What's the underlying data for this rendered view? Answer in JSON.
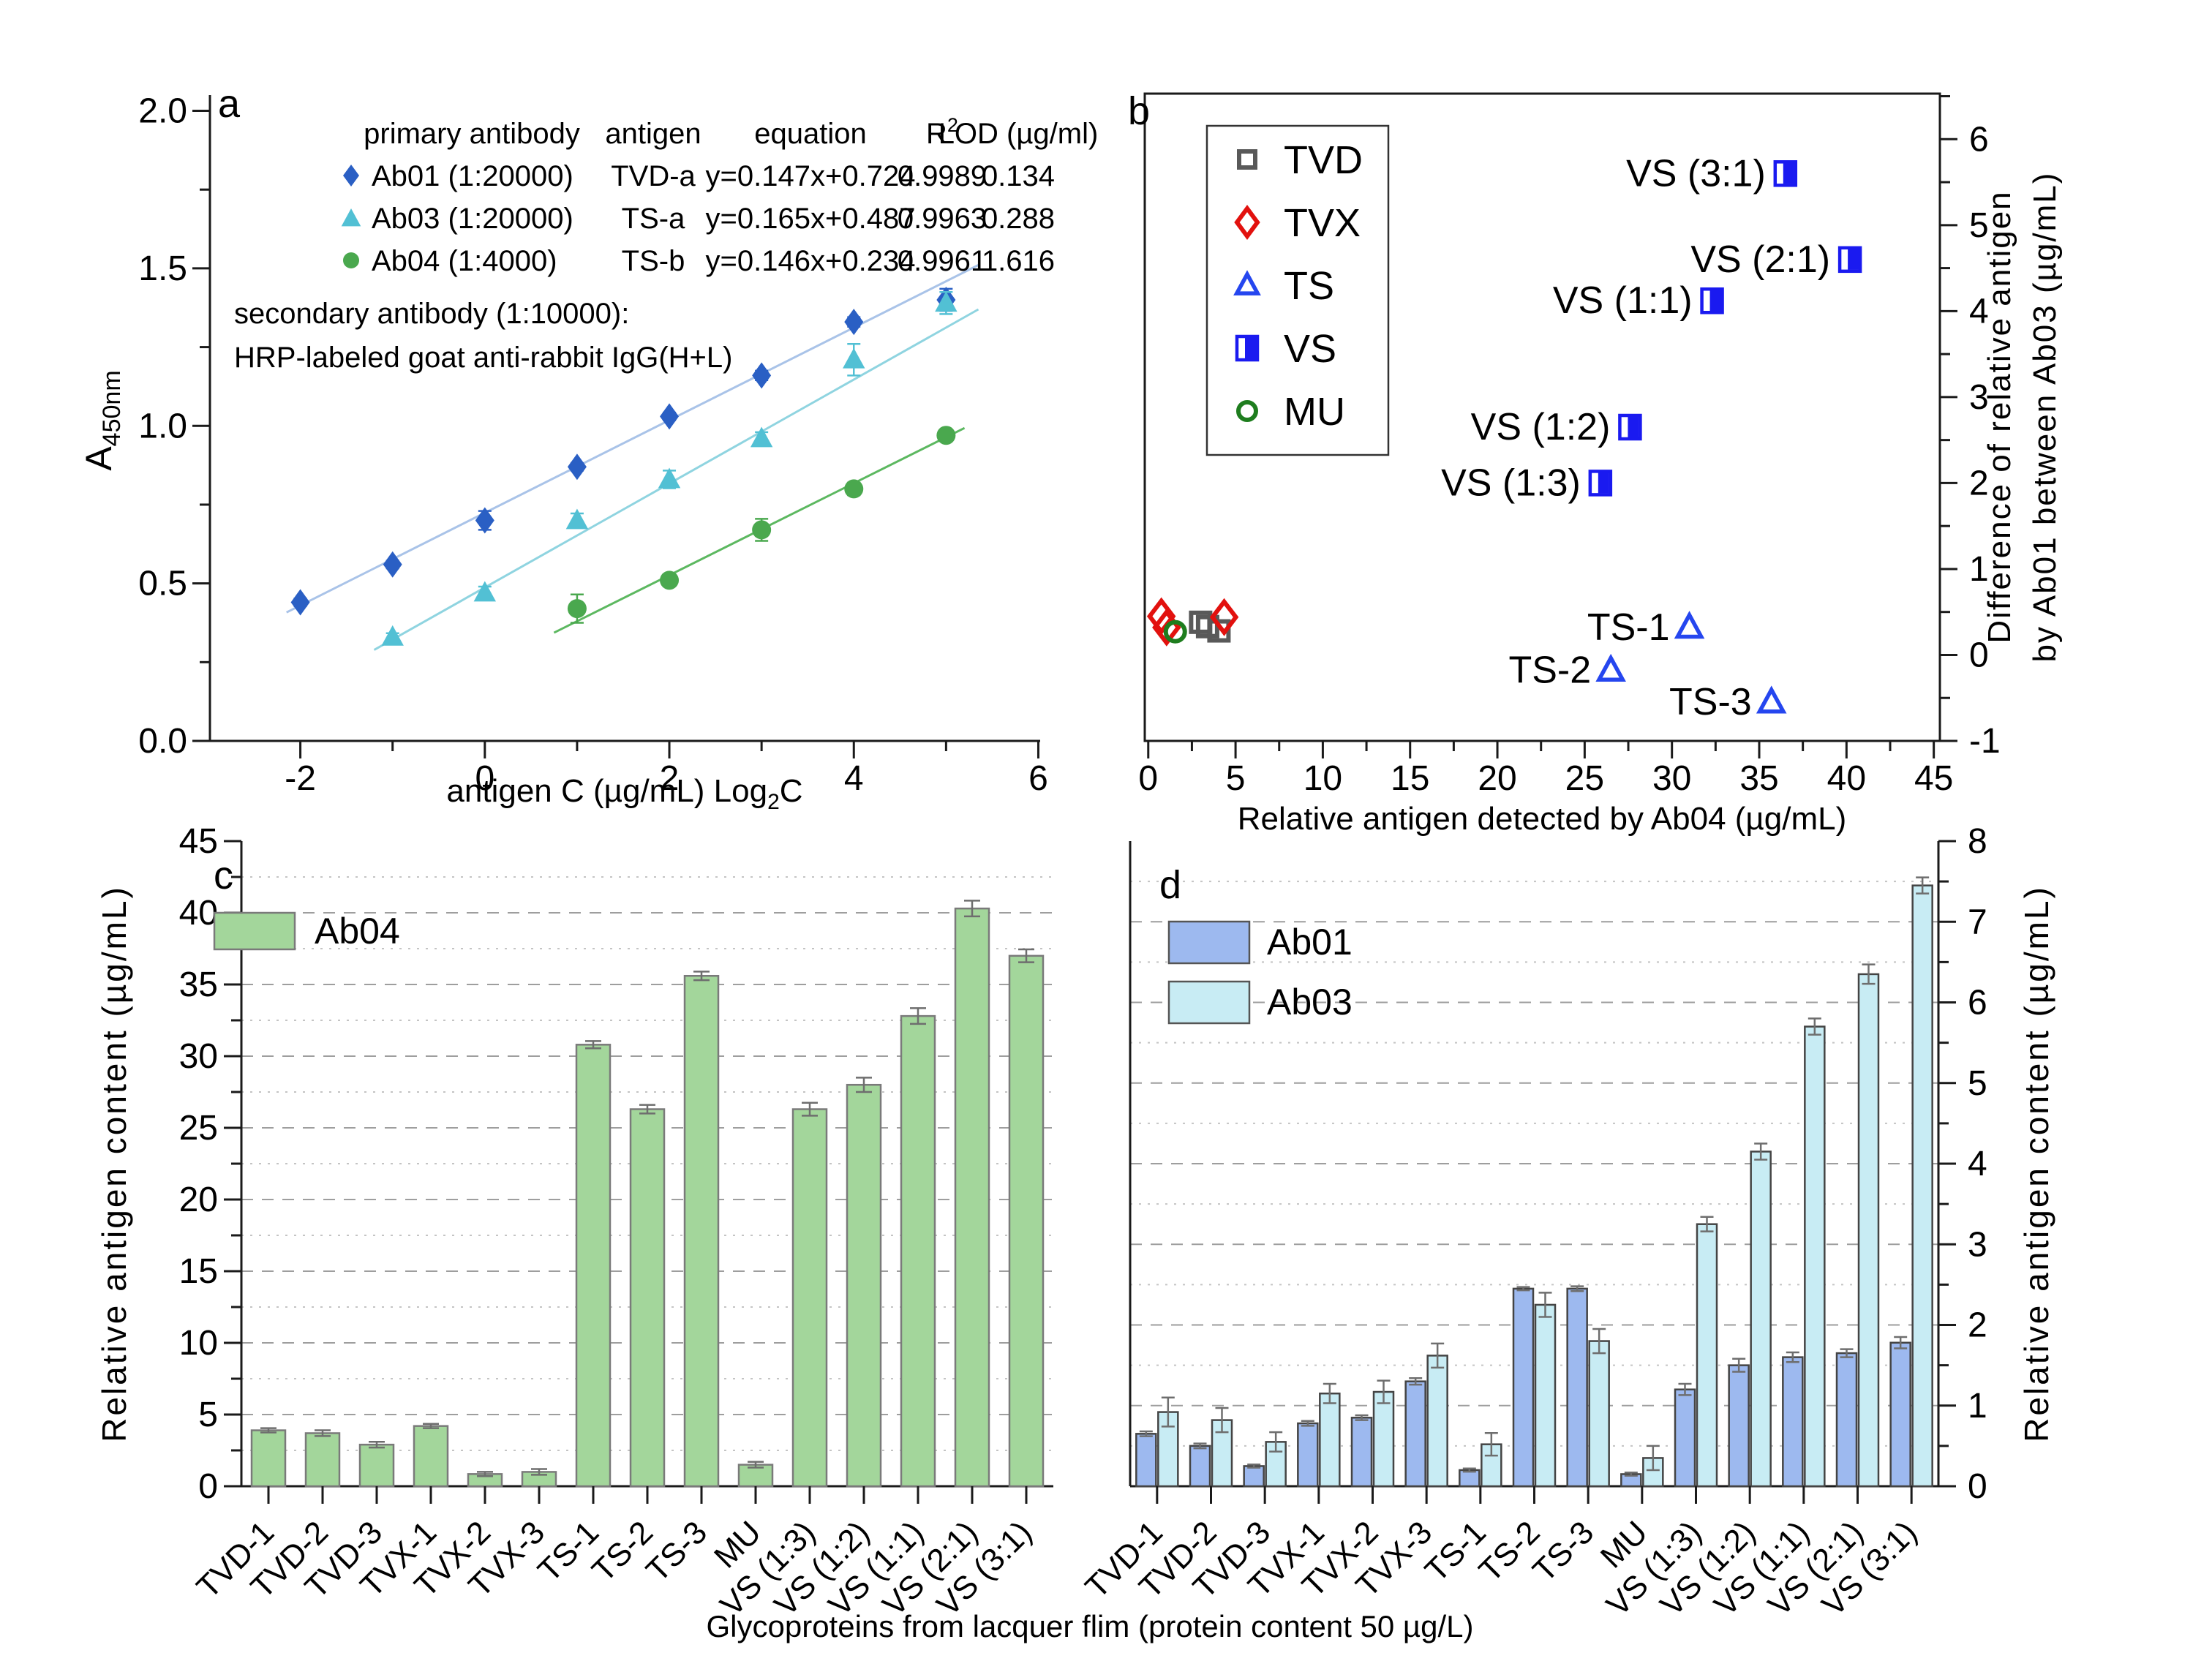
{
  "figure": {
    "background": "#ffffff",
    "bottom_title": "Glycoproteins from lacquer flim (protein content 50 µg/L)",
    "panel_letters": {
      "a": "a",
      "b": "b",
      "c": "c",
      "d": "d"
    }
  },
  "chart_data": [
    {
      "id": "a",
      "type": "scatter",
      "x_axis": {
        "title_pre": "antigen C (µg/mL)  Log",
        "title_sub": "2",
        "title_post": "C",
        "range": [
          -2.98,
          6.02
        ],
        "major_ticks": [
          -2,
          0,
          2,
          4,
          6
        ],
        "minor_step": 1
      },
      "y_axis": {
        "title_base": "A",
        "title_sub": "450nm",
        "range": [
          0,
          2.05
        ],
        "major_tick_labels": [
          "0.0",
          "0.5",
          "1.0",
          "1.5",
          "2.0"
        ],
        "minor_step": 0.25
      },
      "legend_table": {
        "headers": [
          {
            "t": "primary antibody"
          },
          {
            "t": "antigen"
          },
          {
            "t": "equation"
          },
          {
            "t": "R",
            "sup": "2"
          },
          {
            "t": "LOD (µg/ml)"
          }
        ],
        "rows": [
          {
            "marker": "diamond",
            "color": "#2a5fc4",
            "primary_antibody": "Ab01 (1:20000)",
            "antigen": "TVD-a",
            "equation": "y=0.147x+0.724",
            "r2": "0.9989",
            "lod": "0.134"
          },
          {
            "marker": "triangle",
            "color": "#52c0d4",
            "primary_antibody": "Ab03 (1:20000)",
            "antigen": "TS-a",
            "equation": "y=0.165x+0.487",
            "r2": "0.9963",
            "lod": "0.288"
          },
          {
            "marker": "circle",
            "color": "#4aa84e",
            "primary_antibody": "Ab04 (1:4000)",
            "antigen": "TS-b",
            "equation": "y=0.146x+0.234",
            "r2": "0.9961",
            "lod": "1.616"
          }
        ]
      },
      "notes": [
        "secondary antibody (1:10000):",
        "HRP-labeled goat anti-rabbit IgG(H+L)"
      ],
      "series": [
        {
          "name": "Ab01",
          "marker": "diamond",
          "color": "#2a5fc4",
          "line_color": "#a9c3e8",
          "fit": {
            "slope": 0.147,
            "intercept": 0.724,
            "x_range": [
              -2.15,
              5.35
            ]
          },
          "points": [
            [
              -2,
              0.44,
              0.012
            ],
            [
              -1,
              0.56,
              0.012
            ],
            [
              0,
              0.7,
              0.03
            ],
            [
              1,
              0.87,
              0.012
            ],
            [
              2,
              1.03,
              0.012
            ],
            [
              3,
              1.16,
              0.015
            ],
            [
              4,
              1.33,
              0.015
            ],
            [
              5,
              1.4,
              0.035
            ]
          ]
        },
        {
          "name": "Ab03",
          "marker": "triangle",
          "color": "#52c0d4",
          "line_color": "#8fd4e0",
          "fit": {
            "slope": 0.165,
            "intercept": 0.487,
            "x_range": [
              -1.2,
              5.35
            ]
          },
          "points": [
            [
              -1,
              0.33,
              0.012
            ],
            [
              0,
              0.47,
              0.02
            ],
            [
              1,
              0.7,
              0.022
            ],
            [
              2,
              0.83,
              0.028
            ],
            [
              3,
              0.96,
              0.02
            ],
            [
              4,
              1.21,
              0.05
            ],
            [
              5,
              1.39,
              0.035
            ]
          ]
        },
        {
          "name": "Ab04",
          "marker": "circle",
          "color": "#4aa84e",
          "line_color": "#5cb860",
          "fit": {
            "slope": 0.146,
            "intercept": 0.234,
            "x_range": [
              0.75,
              5.2
            ]
          },
          "points": [
            [
              1,
              0.42,
              0.045
            ],
            [
              2,
              0.51,
              0.015
            ],
            [
              3,
              0.67,
              0.035
            ],
            [
              4,
              0.8,
              0.02
            ],
            [
              5,
              0.97,
              0.015
            ]
          ]
        }
      ]
    },
    {
      "id": "b",
      "type": "scatter",
      "x_axis": {
        "title": "Relative antigen detected by Ab04 (µg/mL)",
        "range": [
          -0.2,
          45.35
        ],
        "major_step": 5,
        "minor_step": 2.5,
        "max": 45
      },
      "y_axis": {
        "title_lines": [
          "Difference of relative antigen",
          "by Ab01 between Ab03 (µg/mL)"
        ],
        "range": [
          -1,
          6.53
        ],
        "major_step": 1,
        "minor_step": 0.5
      },
      "legend": [
        {
          "label": "TVD",
          "marker": "square",
          "color": "#595959"
        },
        {
          "label": "TVX",
          "marker": "diamond",
          "color": "#e2110e"
        },
        {
          "label": "TS",
          "marker": "triangle",
          "color": "#2546ef"
        },
        {
          "label": "VS",
          "marker": "halfsquare",
          "color": "#1a1af0"
        },
        {
          "label": "MU",
          "marker": "circle",
          "color": "#1e7d1e"
        }
      ],
      "series": [
        {
          "name": "TVD",
          "marker": "square",
          "color": "#595959",
          "points": [
            [
              3.0,
              0.38
            ],
            [
              3.4,
              0.33
            ],
            [
              4.05,
              0.28
            ]
          ]
        },
        {
          "name": "TVX",
          "marker": "diamond",
          "color": "#e2110e",
          "points": [
            [
              0.75,
              0.45
            ],
            [
              1.05,
              0.32
            ],
            [
              4.35,
              0.44
            ]
          ]
        },
        {
          "name": "TS",
          "marker": "triangle",
          "color": "#2546ef",
          "points": [
            [
              31.0,
              0.32
            ],
            [
              26.5,
              -0.18
            ],
            [
              35.7,
              -0.55
            ]
          ],
          "labels": [
            {
              "text": "TS-1",
              "x": 31.0,
              "y": 0.32
            },
            {
              "text": "TS-2",
              "x": 26.5,
              "y": -0.18
            },
            {
              "text": "TS-3",
              "x": 35.7,
              "y": -0.55
            }
          ]
        },
        {
          "name": "VS",
          "marker": "halfsquare",
          "color": "#1a1af0",
          "points": [
            [
              36.5,
              5.6
            ],
            [
              40.2,
              4.6
            ],
            [
              32.3,
              4.12
            ],
            [
              27.6,
              2.65
            ],
            [
              25.9,
              2.0
            ]
          ],
          "labels": [
            {
              "text": "VS (3:1)",
              "x": 36.5,
              "y": 5.6
            },
            {
              "text": "VS (2:1)",
              "x": 40.2,
              "y": 4.6
            },
            {
              "text": "VS (1:1)",
              "x": 32.3,
              "y": 4.12
            },
            {
              "text": "VS (1:2)",
              "x": 27.6,
              "y": 2.65
            },
            {
              "text": "VS (1:3)",
              "x": 25.9,
              "y": 2.0
            }
          ]
        },
        {
          "name": "MU",
          "marker": "circle",
          "color": "#1e7d1e",
          "points": [
            [
              1.55,
              0.27
            ]
          ]
        }
      ]
    },
    {
      "id": "c",
      "type": "bar",
      "categories": [
        "TVD-1",
        "TVD-2",
        "TVD-3",
        "TVX-1",
        "TVX-2",
        "TVX-3",
        "TS-1",
        "TS-2",
        "TS-3",
        "MU",
        "VS (1:3)",
        "VS (1:2)",
        "VS (1:1)",
        "VS (2:1)",
        "VS (3:1)"
      ],
      "y_axis": {
        "title": "Relative antigen content (µg/mL)",
        "range": [
          0,
          45
        ],
        "major_step": 5,
        "minor_step": 2.5
      },
      "series": [
        {
          "name": "Ab04",
          "color": "#a3d69b",
          "edge": "#7a7a7a",
          "values": [
            3.9,
            3.7,
            2.9,
            4.2,
            0.85,
            1.0,
            30.8,
            26.3,
            35.6,
            1.5,
            26.3,
            28.0,
            32.8,
            40.3,
            37.0
          ],
          "errors": [
            0.15,
            0.2,
            0.2,
            0.15,
            0.15,
            0.2,
            0.25,
            0.3,
            0.3,
            0.2,
            0.45,
            0.5,
            0.55,
            0.55,
            0.45
          ]
        }
      ]
    },
    {
      "id": "d",
      "type": "bar",
      "categories": [
        "TVD-1",
        "TVD-2",
        "TVD-3",
        "TVX-1",
        "TVX-2",
        "TVX-3",
        "TS-1",
        "TS-2",
        "TS-3",
        "MU",
        "VS (1:3)",
        "VS (1:2)",
        "VS (1:1)",
        "VS (2:1)",
        "VS (3:1)"
      ],
      "y_axis": {
        "title": "Relative antigen content (µg/mL)",
        "range": [
          0,
          8
        ],
        "major_step": 1,
        "minor_step": 0.5
      },
      "series": [
        {
          "name": "Ab01",
          "color": "#9db9ef",
          "edge": "#444444",
          "values": [
            0.65,
            0.5,
            0.25,
            0.78,
            0.85,
            1.3,
            0.2,
            2.45,
            2.45,
            0.15,
            1.2,
            1.5,
            1.6,
            1.65,
            1.78
          ],
          "errors": [
            0.03,
            0.03,
            0.02,
            0.03,
            0.03,
            0.04,
            0.02,
            0.02,
            0.03,
            0.02,
            0.07,
            0.08,
            0.06,
            0.05,
            0.07
          ]
        },
        {
          "name": "Ab03",
          "color": "#c8ecf4",
          "edge": "#444444",
          "values": [
            0.92,
            0.82,
            0.55,
            1.15,
            1.17,
            1.62,
            0.52,
            2.25,
            1.8,
            0.35,
            3.25,
            4.15,
            5.7,
            6.35,
            7.45
          ],
          "errors": [
            0.18,
            0.15,
            0.12,
            0.12,
            0.14,
            0.15,
            0.14,
            0.15,
            0.15,
            0.15,
            0.09,
            0.1,
            0.1,
            0.12,
            0.1
          ]
        }
      ]
    }
  ]
}
